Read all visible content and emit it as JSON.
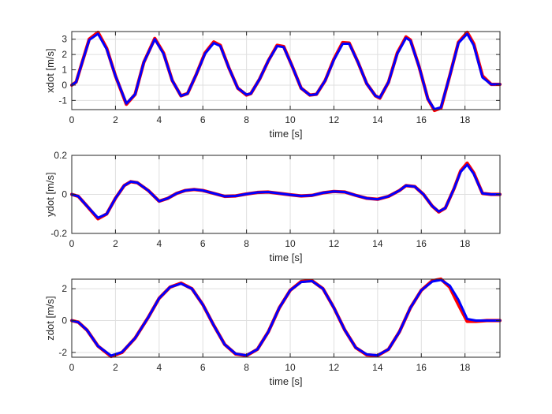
{
  "colors": {
    "reference": "#ff0000",
    "actual": "#0000ff",
    "grid": "#dfdfdf",
    "axis": "#262626"
  },
  "chart_data": [
    {
      "type": "line",
      "title": "",
      "xlabel": "time [s]",
      "ylabel": "xdot [m/s]",
      "xlim": [
        0,
        19.6
      ],
      "ylim": [
        -1.6,
        3.5
      ],
      "xticks": [
        0,
        2,
        4,
        6,
        8,
        10,
        12,
        14,
        16,
        18
      ],
      "yticks": [
        -1,
        0,
        1,
        2,
        3
      ],
      "grid": true,
      "legend": "none",
      "series": [
        {
          "color": "#ff0000",
          "x": [
            0,
            0.2,
            0.5,
            0.8,
            1.2,
            1.6,
            2.0,
            2.5,
            2.9,
            3.3,
            3.8,
            4.2,
            4.6,
            5.0,
            5.3,
            5.7,
            6.1,
            6.5,
            6.8,
            7.2,
            7.6,
            8.0,
            8.2,
            8.6,
            9.0,
            9.4,
            9.7,
            10.1,
            10.5,
            10.9,
            11.2,
            11.6,
            12.0,
            12.4,
            12.7,
            13.1,
            13.5,
            13.9,
            14.1,
            14.5,
            14.9,
            15.3,
            15.5,
            15.9,
            16.3,
            16.6,
            16.9,
            17.3,
            17.7,
            18.1,
            18.4,
            18.8,
            19.2,
            19.6
          ],
          "y": [
            0,
            0.2,
            1.6,
            3.0,
            3.45,
            2.4,
            0.6,
            -1.25,
            -0.6,
            1.5,
            3.05,
            2.1,
            0.3,
            -0.7,
            -0.55,
            0.7,
            2.1,
            2.82,
            2.6,
            1.1,
            -0.2,
            -0.65,
            -0.55,
            0.4,
            1.6,
            2.6,
            2.52,
            1.2,
            -0.2,
            -0.65,
            -0.6,
            0.3,
            1.7,
            2.78,
            2.75,
            1.5,
            0.1,
            -0.7,
            -0.85,
            0.2,
            2.1,
            3.15,
            2.95,
            1.2,
            -0.9,
            -1.65,
            -1.5,
            0.6,
            2.8,
            3.45,
            2.7,
            0.6,
            0.05,
            0.05
          ]
        },
        {
          "color": "#0000ff",
          "x": [
            0,
            0.2,
            0.5,
            0.8,
            1.2,
            1.6,
            2.0,
            2.5,
            2.9,
            3.3,
            3.8,
            4.2,
            4.6,
            5.0,
            5.3,
            5.7,
            6.1,
            6.5,
            6.8,
            7.2,
            7.6,
            8.0,
            8.2,
            8.6,
            9.0,
            9.4,
            9.7,
            10.1,
            10.5,
            10.9,
            11.2,
            11.6,
            12.0,
            12.4,
            12.7,
            13.1,
            13.5,
            13.9,
            14.1,
            14.5,
            14.9,
            15.3,
            15.5,
            15.9,
            16.3,
            16.6,
            16.9,
            17.3,
            17.7,
            18.1,
            18.4,
            18.8,
            19.2,
            19.6
          ],
          "y": [
            0,
            0.2,
            1.6,
            2.95,
            3.35,
            2.35,
            0.6,
            -1.2,
            -0.6,
            1.5,
            3.0,
            2.05,
            0.3,
            -0.7,
            -0.55,
            0.7,
            2.05,
            2.75,
            2.55,
            1.1,
            -0.2,
            -0.62,
            -0.55,
            0.4,
            1.6,
            2.55,
            2.48,
            1.2,
            -0.2,
            -0.65,
            -0.6,
            0.3,
            1.65,
            2.7,
            2.7,
            1.5,
            0.1,
            -0.7,
            -0.82,
            0.2,
            2.05,
            3.08,
            2.9,
            1.2,
            -0.9,
            -1.58,
            -1.45,
            0.6,
            2.75,
            3.35,
            2.6,
            0.5,
            0.05,
            0.05
          ]
        }
      ]
    },
    {
      "type": "line",
      "title": "",
      "xlabel": "time [s]",
      "ylabel": "ydot [m/s]",
      "xlim": [
        0,
        19.6
      ],
      "ylim": [
        -0.2,
        0.2
      ],
      "xticks": [
        0,
        2,
        4,
        6,
        8,
        10,
        12,
        14,
        16,
        18
      ],
      "yticks": [
        -0.2,
        0,
        0.2
      ],
      "grid": true,
      "legend": "none",
      "series": [
        {
          "color": "#ff0000",
          "x": [
            0,
            0.3,
            0.7,
            1.2,
            1.6,
            2.0,
            2.4,
            2.7,
            3.0,
            3.5,
            4.0,
            4.4,
            4.8,
            5.2,
            5.6,
            6.0,
            6.5,
            7.0,
            7.5,
            8.0,
            8.5,
            9.0,
            9.5,
            10.0,
            10.5,
            11.0,
            11.5,
            12.0,
            12.5,
            13.0,
            13.5,
            14.0,
            14.5,
            15.0,
            15.3,
            15.7,
            16.1,
            16.5,
            16.8,
            17.1,
            17.5,
            17.8,
            18.1,
            18.4,
            18.8,
            19.2,
            19.6
          ],
          "y": [
            0,
            -0.01,
            -0.06,
            -0.125,
            -0.1,
            -0.02,
            0.045,
            0.065,
            0.06,
            0.02,
            -0.035,
            -0.02,
            0.005,
            0.02,
            0.025,
            0.02,
            0.005,
            -0.01,
            -0.008,
            0.002,
            0.01,
            0.012,
            0.005,
            -0.002,
            -0.008,
            -0.005,
            0.008,
            0.015,
            0.012,
            -0.005,
            -0.02,
            -0.025,
            -0.01,
            0.02,
            0.045,
            0.04,
            0.0,
            -0.06,
            -0.09,
            -0.07,
            0.03,
            0.12,
            0.16,
            0.11,
            0.005,
            0.0,
            0.0
          ]
        },
        {
          "color": "#0000ff",
          "x": [
            0,
            0.3,
            0.7,
            1.2,
            1.6,
            2.0,
            2.4,
            2.7,
            3.0,
            3.5,
            4.0,
            4.4,
            4.8,
            5.2,
            5.6,
            6.0,
            6.5,
            7.0,
            7.5,
            8.0,
            8.5,
            9.0,
            9.5,
            10.0,
            10.5,
            11.0,
            11.5,
            12.0,
            12.5,
            13.0,
            13.5,
            14.0,
            14.5,
            15.0,
            15.3,
            15.7,
            16.1,
            16.5,
            16.8,
            17.1,
            17.5,
            17.8,
            18.1,
            18.4,
            18.8,
            19.2,
            19.6
          ],
          "y": [
            0,
            -0.01,
            -0.06,
            -0.12,
            -0.1,
            -0.02,
            0.045,
            0.065,
            0.06,
            0.02,
            -0.035,
            -0.02,
            0.005,
            0.02,
            0.025,
            0.02,
            0.005,
            -0.01,
            -0.008,
            0.002,
            0.01,
            0.012,
            0.005,
            -0.002,
            -0.008,
            -0.005,
            0.008,
            0.015,
            0.012,
            -0.005,
            -0.02,
            -0.025,
            -0.01,
            0.02,
            0.045,
            0.04,
            0.0,
            -0.06,
            -0.088,
            -0.07,
            0.03,
            0.115,
            0.152,
            0.105,
            0.005,
            0.0,
            0.0
          ]
        }
      ]
    },
    {
      "type": "line",
      "title": "",
      "xlabel": "time [s]",
      "ylabel": "zdot [m/s]",
      "xlim": [
        0,
        19.6
      ],
      "ylim": [
        -2.3,
        2.6
      ],
      "xticks": [
        0,
        2,
        4,
        6,
        8,
        10,
        12,
        14,
        16,
        18
      ],
      "yticks": [
        -2,
        0,
        2
      ],
      "grid": true,
      "legend": "none",
      "series": [
        {
          "color": "#ff0000",
          "x": [
            0,
            0.3,
            0.7,
            1.2,
            1.8,
            2.3,
            2.9,
            3.5,
            4.0,
            4.5,
            5.0,
            5.5,
            6.0,
            6.5,
            7.0,
            7.5,
            8.0,
            8.5,
            9.0,
            9.5,
            10.0,
            10.5,
            11.0,
            11.5,
            12.0,
            12.5,
            13.0,
            13.5,
            14.0,
            14.5,
            15.0,
            15.5,
            16.0,
            16.5,
            16.9,
            17.3,
            17.7,
            18.1,
            18.5,
            19.0,
            19.6
          ],
          "y": [
            0,
            -0.1,
            -0.6,
            -1.6,
            -2.25,
            -2.0,
            -1.1,
            0.2,
            1.4,
            2.1,
            2.35,
            2.0,
            1.0,
            -0.3,
            -1.5,
            -2.1,
            -2.2,
            -1.8,
            -0.7,
            0.8,
            1.9,
            2.45,
            2.5,
            2.0,
            0.8,
            -0.6,
            -1.7,
            -2.15,
            -2.2,
            -1.8,
            -0.7,
            0.8,
            1.9,
            2.5,
            2.6,
            2.1,
            1.0,
            -0.05,
            -0.05,
            0.0,
            0.0
          ]
        },
        {
          "color": "#0000ff",
          "x": [
            0,
            0.3,
            0.7,
            1.2,
            1.8,
            2.3,
            2.9,
            3.5,
            4.0,
            4.5,
            5.0,
            5.5,
            6.0,
            6.5,
            7.0,
            7.5,
            8.0,
            8.5,
            9.0,
            9.5,
            10.0,
            10.5,
            11.0,
            11.5,
            12.0,
            12.5,
            13.0,
            13.5,
            14.0,
            14.5,
            15.0,
            15.5,
            16.0,
            16.5,
            16.9,
            17.3,
            17.7,
            18.1,
            18.5,
            19.0,
            19.6
          ],
          "y": [
            0,
            -0.1,
            -0.6,
            -1.6,
            -2.2,
            -1.98,
            -1.1,
            0.2,
            1.4,
            2.1,
            2.32,
            2.0,
            1.0,
            -0.3,
            -1.5,
            -2.08,
            -2.18,
            -1.8,
            -0.7,
            0.8,
            1.9,
            2.42,
            2.48,
            2.0,
            0.8,
            -0.6,
            -1.7,
            -2.12,
            -2.18,
            -1.8,
            -0.7,
            0.8,
            1.9,
            2.45,
            2.55,
            2.2,
            1.3,
            0.1,
            0.0,
            0.0,
            0.0
          ]
        }
      ]
    }
  ]
}
